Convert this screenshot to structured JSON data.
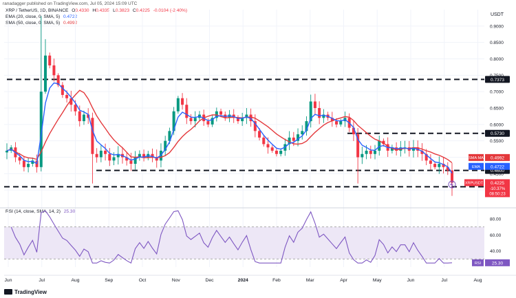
{
  "header": {
    "publisher_line": "ranadagger published on TradingView.com, Jul 05, 2024 15:09 UTC",
    "symbol": "XRP / TetherUS, 1D, BINANCE",
    "ohlc": {
      "o_label": "O",
      "o": "0.4330",
      "h_label": "H",
      "h": "0.4335",
      "l_label": "L",
      "l": "0.3823",
      "c_label": "C",
      "c": "0.4225",
      "change": "-0.0104 (-2.40%)"
    },
    "ema_label": "EMA (20, close, 0, SMA, 5)",
    "ema_value": "0.4722",
    "sma_label": "SMA (50, close, 0, SMA, 5)",
    "sma_value": "0.4992",
    "rsi_label": "RSI (14, close, SMA, 14, 2)",
    "rsi_value": "25.30",
    "currency": "USDT"
  },
  "colors": {
    "up": "#089981",
    "down": "#f23645",
    "ema": "#2962ff",
    "sma": "#e4383b",
    "rsi": "#7e57c2",
    "rsi_band": "#ede7f6",
    "level_line": "#131722"
  },
  "chart_data": [
    {
      "type": "candlestick",
      "title": "XRP / TetherUS, 1D, BINANCE",
      "ylabel": "USDT",
      "ylim": [
        0.35,
        0.95
      ],
      "yticks": [
        "0.9000",
        "0.8500",
        "0.8000",
        "0.7500",
        "0.7000",
        "0.6500",
        "0.6000",
        "0.5500",
        "0.5000",
        "0.4500",
        "0.4000"
      ],
      "ytick_values": [
        0.9,
        0.85,
        0.8,
        0.75,
        0.7,
        0.65,
        0.6,
        0.55,
        0.5,
        0.45,
        0.4
      ],
      "xticks": [
        "Jun",
        "Jul",
        "Aug",
        "Sep",
        "Oct",
        "Nov",
        "Dec",
        "2024",
        "Feb",
        "Mar",
        "Apr",
        "May",
        "Jun",
        "Jul",
        "Aug"
      ],
      "series": [
        {
          "name": "XRPUSDT",
          "kind": "ohlc",
          "note": "daily candles, Jun 2023 - Jul 5 2024 (values estimated, closes listed)",
          "closes": [
            0.52,
            0.53,
            0.5,
            0.49,
            0.47,
            0.48,
            0.49,
            0.47,
            0.7,
            0.81,
            0.78,
            0.75,
            0.72,
            0.69,
            0.68,
            0.66,
            0.64,
            0.61,
            0.63,
            0.62,
            0.51,
            0.5,
            0.52,
            0.51,
            0.49,
            0.5,
            0.51,
            0.5,
            0.49,
            0.48,
            0.5,
            0.51,
            0.5,
            0.51,
            0.5,
            0.49,
            0.52,
            0.55,
            0.58,
            0.64,
            0.68,
            0.66,
            0.62,
            0.61,
            0.62,
            0.63,
            0.61,
            0.6,
            0.62,
            0.64,
            0.63,
            0.62,
            0.63,
            0.62,
            0.61,
            0.62,
            0.63,
            0.61,
            0.58,
            0.56,
            0.54,
            0.53,
            0.52,
            0.51,
            0.52,
            0.54,
            0.56,
            0.55,
            0.57,
            0.58,
            0.61,
            0.67,
            0.65,
            0.62,
            0.63,
            0.62,
            0.61,
            0.6,
            0.61,
            0.62,
            0.59,
            0.57,
            0.5,
            0.51,
            0.52,
            0.51,
            0.52,
            0.55,
            0.54,
            0.52,
            0.53,
            0.52,
            0.53,
            0.53,
            0.52,
            0.53,
            0.52,
            0.51,
            0.49,
            0.48,
            0.47,
            0.48,
            0.47,
            0.46,
            0.4225
          ]
        },
        {
          "name": "EMA 20",
          "value_last": 0.4722
        },
        {
          "name": "SMA 50",
          "value_last": 0.4992
        }
      ],
      "levels": [
        {
          "label": "0.7373",
          "value": 0.7373
        },
        {
          "label": "0.5730",
          "value": 0.573
        },
        {
          "label": "0.4600",
          "value": 0.46
        },
        {
          "label": "0.4100",
          "value": 0.41
        }
      ],
      "price_tags": [
        {
          "label": "SMA:MA",
          "value_label": "0.4992",
          "value": 0.4992
        },
        {
          "label": "EMA",
          "value_label": "0.4722",
          "value": 0.4722
        },
        {
          "label": "XRPUSDT",
          "value_label": "0.4225",
          "value": 0.4225,
          "sub1": "-10.37%",
          "sub2": "08:50:23"
        }
      ]
    },
    {
      "type": "line",
      "title": "RSI (14, close, SMA, 14, 2)",
      "ylim": [
        20,
        92
      ],
      "yticks": [
        "80.00",
        "60.00",
        "40.00"
      ],
      "ytick_values": [
        80,
        60,
        40
      ],
      "band": [
        30,
        70
      ],
      "last_value": 25.3,
      "last_label": "RSI",
      "last_value_label": "25.30"
    }
  ]
}
